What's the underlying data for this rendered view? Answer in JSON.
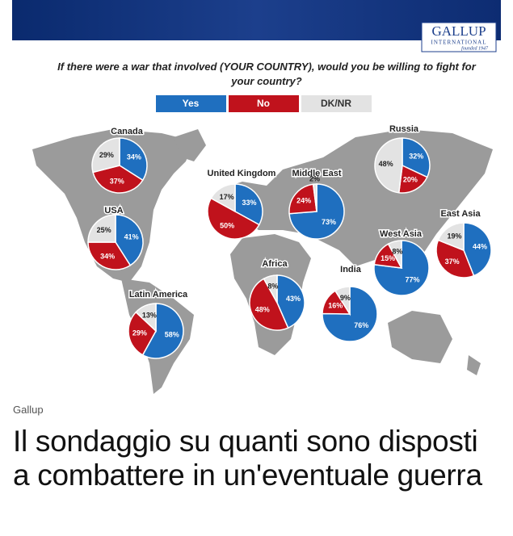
{
  "chart_data": {
    "type": "pie",
    "title": "If there were a war that involved (YOUR COUNTRY), would you be willing to fight for your country?",
    "logo": "GALLUP",
    "logo_sub": "INTERNATIONAL",
    "logo_founded": "founded 1947",
    "categories": [
      "Canada",
      "United Kingdom",
      "Middle East",
      "Russia",
      "USA",
      "East Asia",
      "West Asia",
      "Africa",
      "India",
      "Latin America"
    ],
    "series": [
      {
        "name": "Yes",
        "color": "#1f6fbf",
        "values": [
          34,
          33,
          73,
          32,
          41,
          44,
          77,
          43,
          76,
          58
        ],
        "value_labels": [
          "34%",
          "33%",
          "73%",
          "32%",
          "41%",
          "44%",
          "77%",
          "43%",
          "76%",
          "58%"
        ]
      },
      {
        "name": "No",
        "color": "#c0121c",
        "values": [
          37,
          50,
          24,
          20,
          34,
          37,
          15,
          48,
          16,
          29
        ],
        "value_labels": [
          "37%",
          "50%",
          "24%",
          "20%",
          "34%",
          "37%",
          "15%",
          "48%",
          "16%",
          "29%"
        ]
      },
      {
        "name": "DK/NR",
        "color": "#e3e3e3",
        "values": [
          29,
          17,
          2,
          48,
          25,
          19,
          8,
          8,
          9,
          13
        ],
        "value_labels": [
          "29%",
          "17%",
          "2%",
          "48%",
          "25%",
          "19%",
          "8%",
          "8%",
          "9%",
          "13%"
        ]
      }
    ]
  },
  "source": "Gallup",
  "headline": "Il sondaggio su quanti sono disposti a combattere in un'eventuale guerra"
}
